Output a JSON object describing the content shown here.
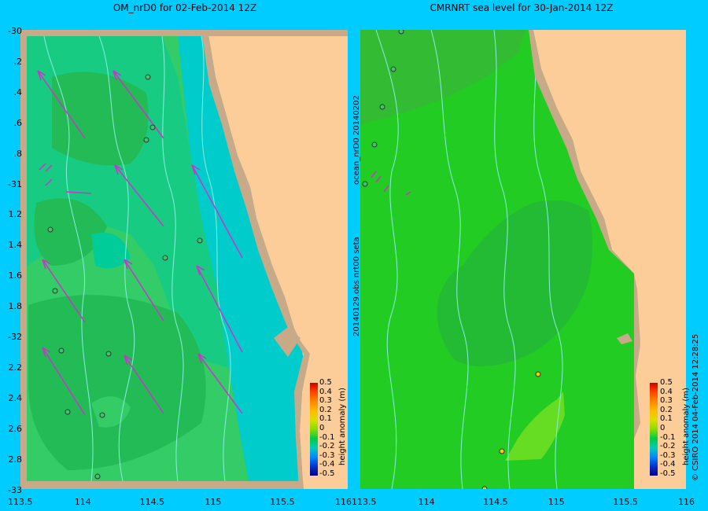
{
  "left_title": "OM_nrD0 for 02-Feb-2014 12Z",
  "right_title": "CMRNRT sea level  for 30-Jan-2014 12Z",
  "y_ticks": [
    "-30",
    "-30.2",
    "-30.4",
    "-30.6",
    "-30.8",
    "-31",
    "-31.2",
    "-31.4",
    "-31.6",
    "-31.8",
    "-32",
    "-32.2",
    "-32.4",
    "-32.6",
    "-32.8",
    "-33"
  ],
  "y_tick_labels": [
    "-30",
    ".2",
    ".4",
    ".6",
    ".8",
    "-31",
    "1.2",
    "1.4",
    "1.6",
    "1.8",
    "-32",
    "2.2",
    "2.4",
    "2.6",
    "2.8",
    "-33"
  ],
  "x_ticks_left": [
    "113.5",
    "114",
    "114.5",
    "115",
    "115.5",
    "116"
  ],
  "x_ticks_right": [
    "113.5",
    "114",
    "114.5",
    "115",
    "115.5",
    "116"
  ],
  "colorbar": {
    "label": "height anomaly (m)",
    "ticks": [
      "0.5",
      "0.4",
      "0.3",
      "0.2",
      "0.1",
      "0",
      "-0.1",
      "-0.2",
      "-0.3",
      "-0.4",
      "-0.5"
    ]
  },
  "side_text_1": "ocean_nrD0  20140202",
  "side_text_2": "20140129.obs  nrt00  seta",
  "right_margin_text": "© CSIRO 2014   04-Feb-2014 12:28:25",
  "colors": {
    "background": "#00ccff",
    "land": "#fccc99",
    "coast": "#c8aa88",
    "anom_0": "#33cc66",
    "anom_neg01": "#22bb55",
    "anom_neg015": "#00cc99",
    "anom_neg02": "#00cccc",
    "anom_pos": "#66dd22",
    "arrow": "#cc33cc"
  }
}
